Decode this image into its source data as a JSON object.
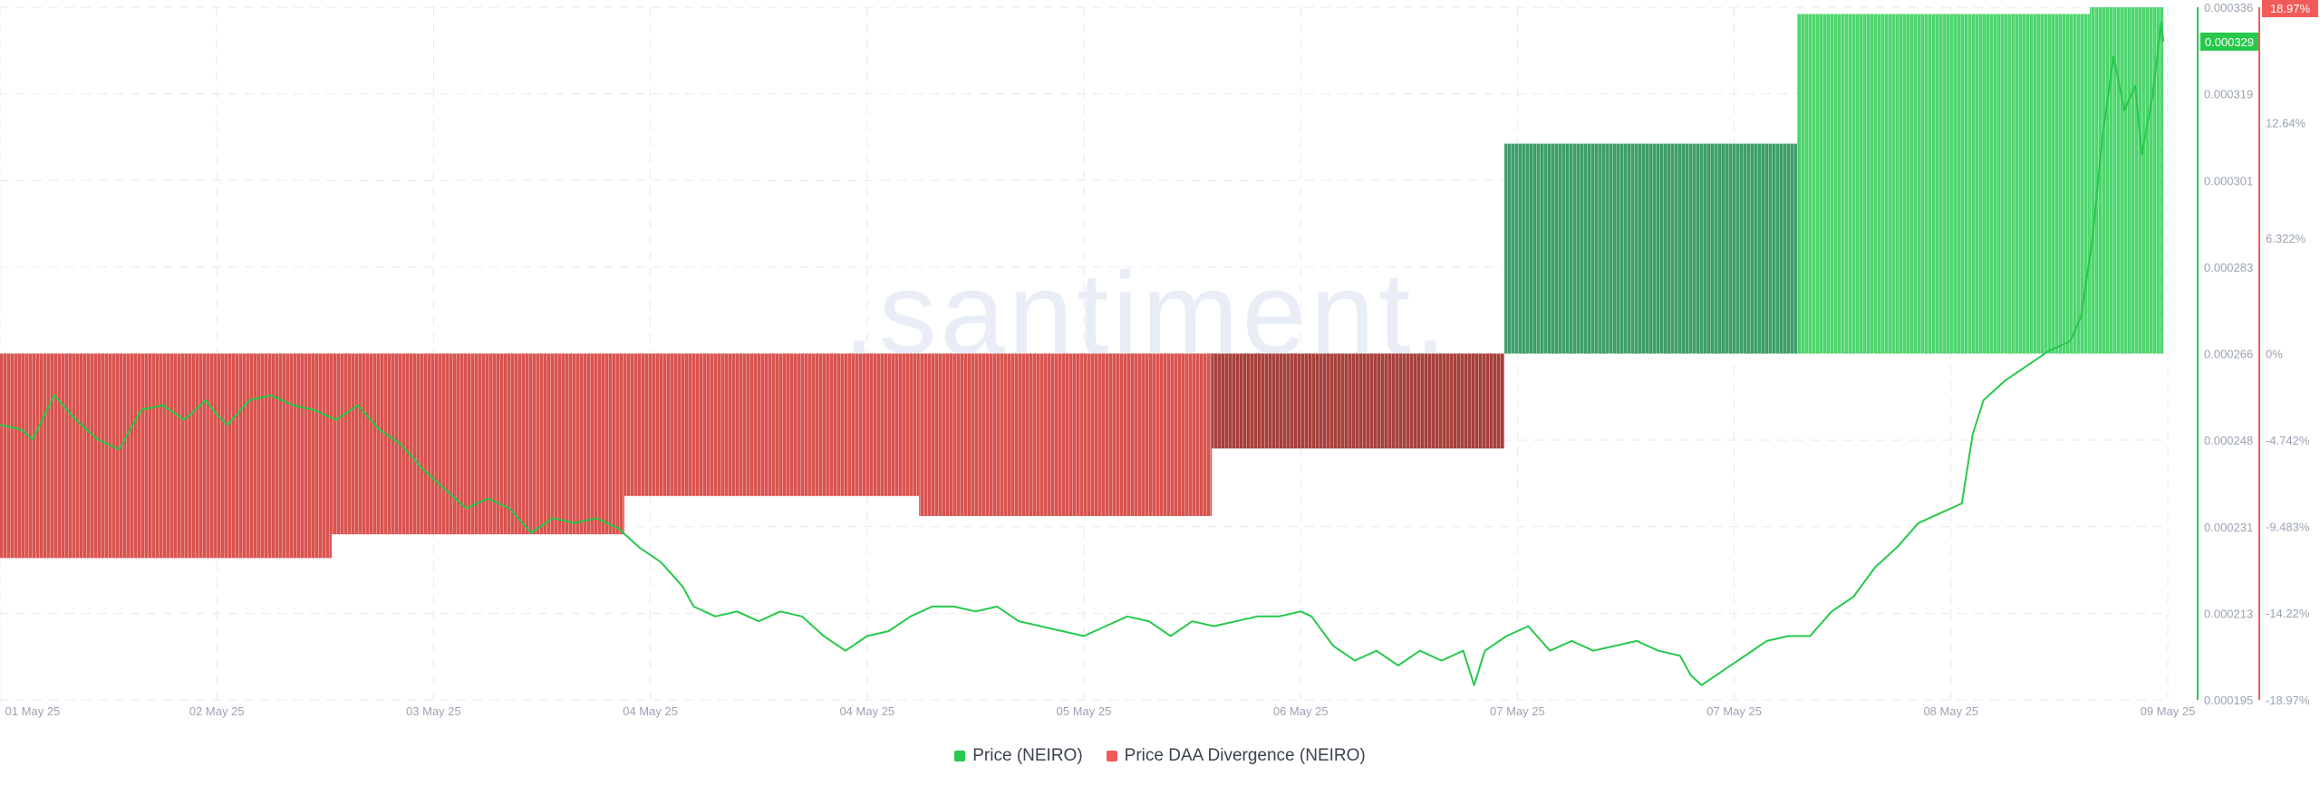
{
  "watermark": ".santiment.",
  "legend": {
    "price_label": "Price (NEIRO)",
    "divergence_label": "Price DAA Divergence (NEIRO)"
  },
  "colors": {
    "price": "#26c94a",
    "divergence_negative": "#d9534f",
    "divergence_negative_dark": "#a6403b",
    "divergence_positive": "#4fd66f",
    "divergence_positive_dark": "#3f9e6a",
    "price_badge": "#26c94a",
    "divergence_badge": "#f25a5a",
    "grid": "#e6e9ef",
    "tick_text": "#9aa3b2"
  },
  "chart_data": {
    "type": "line",
    "x_ticks": [
      "01 May 25",
      "02 May 25",
      "03 May 25",
      "04 May 25",
      "04 May 25",
      "05 May 25",
      "06 May 25",
      "07 May 25",
      "07 May 25",
      "08 May 25",
      "09 May 25"
    ],
    "price_axis": {
      "ticks": [
        "0.000336",
        "0.000319",
        "0.000301",
        "0.000283",
        "0.000266",
        "0.000248",
        "0.000231",
        "0.000213",
        "0.000195"
      ],
      "min": 0.000195,
      "max": 0.000336,
      "current_label": "0.000329"
    },
    "divergence_axis": {
      "ticks": [
        "18.97%",
        "12.64%",
        "6.322%",
        "0%",
        "-4.742%",
        "-9.483%",
        "-14.22%",
        "-18.97%"
      ],
      "min": -18.97,
      "max": 18.97,
      "current_label": "18.97%"
    },
    "divergence_bars": [
      {
        "start": 0.0,
        "end": 1.53,
        "value": -11.2,
        "shade": "negative"
      },
      {
        "start": 1.53,
        "end": 2.88,
        "value": -9.9,
        "shade": "negative"
      },
      {
        "start": 2.88,
        "end": 4.24,
        "value": -7.8,
        "shade": "negative"
      },
      {
        "start": 4.24,
        "end": 5.59,
        "value": -8.9,
        "shade": "negative"
      },
      {
        "start": 5.59,
        "end": 6.94,
        "value": -5.2,
        "shade": "negative_dark"
      },
      {
        "start": 6.94,
        "end": 8.29,
        "value": 11.5,
        "shade": "positive_dark"
      },
      {
        "start": 8.29,
        "end": 9.64,
        "value": 18.6,
        "shade": "positive"
      },
      {
        "start": 9.64,
        "end": 9.98,
        "value": 18.97,
        "shade": "positive"
      }
    ],
    "series": [
      {
        "name": "Price (NEIRO)",
        "axis": "price",
        "points": [
          [
            0.0,
            0.000251
          ],
          [
            0.1,
            0.00025
          ],
          [
            0.15,
            0.000248
          ],
          [
            0.25,
            0.000257
          ],
          [
            0.35,
            0.000252
          ],
          [
            0.45,
            0.000248
          ],
          [
            0.55,
            0.000246
          ],
          [
            0.65,
            0.000254
          ],
          [
            0.75,
            0.000255
          ],
          [
            0.85,
            0.000252
          ],
          [
            0.95,
            0.000256
          ],
          [
            1.0,
            0.000253
          ],
          [
            1.05,
            0.000251
          ],
          [
            1.15,
            0.000256
          ],
          [
            1.25,
            0.000257
          ],
          [
            1.35,
            0.000255
          ],
          [
            1.45,
            0.000254
          ],
          [
            1.55,
            0.000252
          ],
          [
            1.65,
            0.000255
          ],
          [
            1.75,
            0.00025
          ],
          [
            1.85,
            0.000247
          ],
          [
            1.95,
            0.000242
          ],
          [
            2.05,
            0.000238
          ],
          [
            2.15,
            0.000234
          ],
          [
            2.25,
            0.000236
          ],
          [
            2.35,
            0.000234
          ],
          [
            2.45,
            0.000229
          ],
          [
            2.55,
            0.000232
          ],
          [
            2.65,
            0.000231
          ],
          [
            2.75,
            0.000232
          ],
          [
            2.85,
            0.00023
          ],
          [
            2.95,
            0.000226
          ],
          [
            3.05,
            0.000223
          ],
          [
            3.15,
            0.000218
          ],
          [
            3.2,
            0.000214
          ],
          [
            3.3,
            0.000212
          ],
          [
            3.4,
            0.000213
          ],
          [
            3.5,
            0.000211
          ],
          [
            3.6,
            0.000213
          ],
          [
            3.7,
            0.000212
          ],
          [
            3.8,
            0.000208
          ],
          [
            3.9,
            0.000205
          ],
          [
            4.0,
            0.000208
          ],
          [
            4.1,
            0.000209
          ],
          [
            4.2,
            0.000212
          ],
          [
            4.3,
            0.000214
          ],
          [
            4.4,
            0.000214
          ],
          [
            4.5,
            0.000213
          ],
          [
            4.6,
            0.000214
          ],
          [
            4.7,
            0.000211
          ],
          [
            4.8,
            0.00021
          ],
          [
            4.9,
            0.000209
          ],
          [
            5.0,
            0.000208
          ],
          [
            5.1,
            0.00021
          ],
          [
            5.2,
            0.000212
          ],
          [
            5.3,
            0.000211
          ],
          [
            5.4,
            0.000208
          ],
          [
            5.5,
            0.000211
          ],
          [
            5.6,
            0.00021
          ],
          [
            5.7,
            0.000211
          ],
          [
            5.8,
            0.000212
          ],
          [
            5.9,
            0.000212
          ],
          [
            6.0,
            0.000213
          ],
          [
            6.05,
            0.000212
          ],
          [
            6.15,
            0.000206
          ],
          [
            6.25,
            0.000203
          ],
          [
            6.35,
            0.000205
          ],
          [
            6.45,
            0.000202
          ],
          [
            6.55,
            0.000205
          ],
          [
            6.65,
            0.000203
          ],
          [
            6.75,
            0.000205
          ],
          [
            6.8,
            0.000198
          ],
          [
            6.85,
            0.000205
          ],
          [
            6.95,
            0.000208
          ],
          [
            7.05,
            0.00021
          ],
          [
            7.15,
            0.000205
          ],
          [
            7.25,
            0.000207
          ],
          [
            7.35,
            0.000205
          ],
          [
            7.45,
            0.000206
          ],
          [
            7.55,
            0.000207
          ],
          [
            7.65,
            0.000205
          ],
          [
            7.75,
            0.000204
          ],
          [
            7.8,
            0.0002
          ],
          [
            7.85,
            0.000198
          ],
          [
            7.95,
            0.000201
          ],
          [
            8.05,
            0.000204
          ],
          [
            8.15,
            0.000207
          ],
          [
            8.25,
            0.000208
          ],
          [
            8.35,
            0.000208
          ],
          [
            8.45,
            0.000213
          ],
          [
            8.55,
            0.000216
          ],
          [
            8.65,
            0.000222
          ],
          [
            8.75,
            0.000226
          ],
          [
            8.85,
            0.000231
          ],
          [
            8.95,
            0.000233
          ],
          [
            9.05,
            0.000235
          ],
          [
            9.1,
            0.000249
          ],
          [
            9.15,
            0.000256
          ],
          [
            9.25,
            0.00026
          ],
          [
            9.35,
            0.000263
          ],
          [
            9.45,
            0.000266
          ],
          [
            9.55,
            0.000268
          ],
          [
            9.6,
            0.000273
          ],
          [
            9.65,
            0.000288
          ],
          [
            9.7,
            0.00031
          ],
          [
            9.75,
            0.000326
          ],
          [
            9.8,
            0.000315
          ],
          [
            9.85,
            0.00032
          ],
          [
            9.88,
            0.000306
          ],
          [
            9.93,
            0.000318
          ],
          [
            9.97,
            0.000333
          ],
          [
            9.98,
            0.000329
          ]
        ]
      }
    ],
    "grid": true,
    "legend_position": "bottom"
  }
}
